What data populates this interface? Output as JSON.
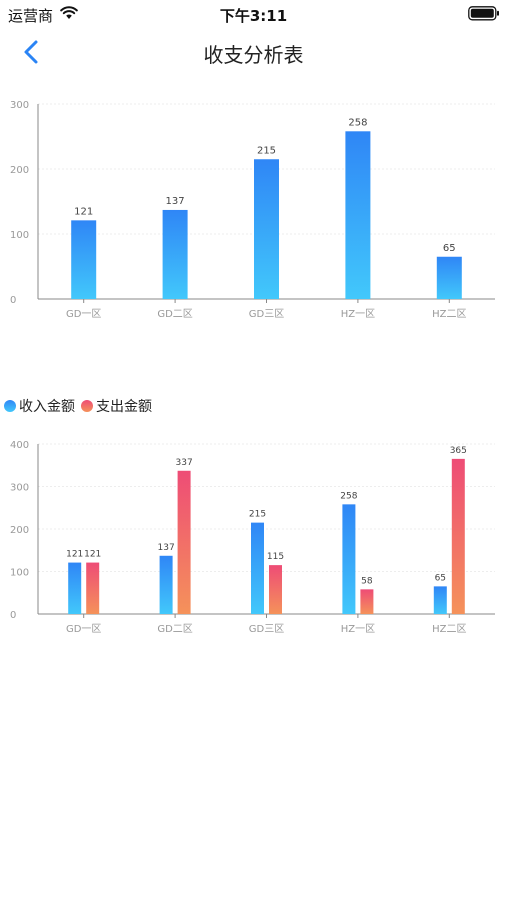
{
  "status_bar": {
    "carrier": "运营商",
    "time": "下午3:11",
    "icons": [
      "wifi-icon",
      "battery-icon"
    ]
  },
  "nav": {
    "title": "收支分析表",
    "back_icon": "chevron-left-icon"
  },
  "colors": {
    "accent": "#2a84f5",
    "income_top": "#2f86f6",
    "income_bottom": "#42c8fb",
    "expense_top": "#ee4c76",
    "expense_bottom": "#f5925a",
    "axis": "#888888",
    "grid": "#e8e8e8"
  },
  "chart_data": [
    {
      "type": "bar",
      "categories": [
        "GD一区",
        "GD二区",
        "GD三区",
        "HZ一区",
        "HZ二区"
      ],
      "series": [
        {
          "values": [
            121,
            137,
            215,
            258,
            65
          ]
        }
      ],
      "ylim": [
        0,
        300
      ],
      "yticks": [
        0,
        100,
        200,
        300
      ],
      "grid": true,
      "data_labels": true
    },
    {
      "type": "bar",
      "categories": [
        "GD一区",
        "GD二区",
        "GD三区",
        "HZ一区",
        "HZ二区"
      ],
      "series": [
        {
          "name": "收入金额",
          "values": [
            121,
            137,
            215,
            258,
            65
          ]
        },
        {
          "name": "支出金额",
          "values": [
            121,
            337,
            115,
            58,
            365
          ]
        }
      ],
      "ylim": [
        0,
        400
      ],
      "yticks": [
        0,
        100,
        200,
        300,
        400
      ],
      "grid": true,
      "legend": "top-left",
      "data_labels": true
    }
  ]
}
